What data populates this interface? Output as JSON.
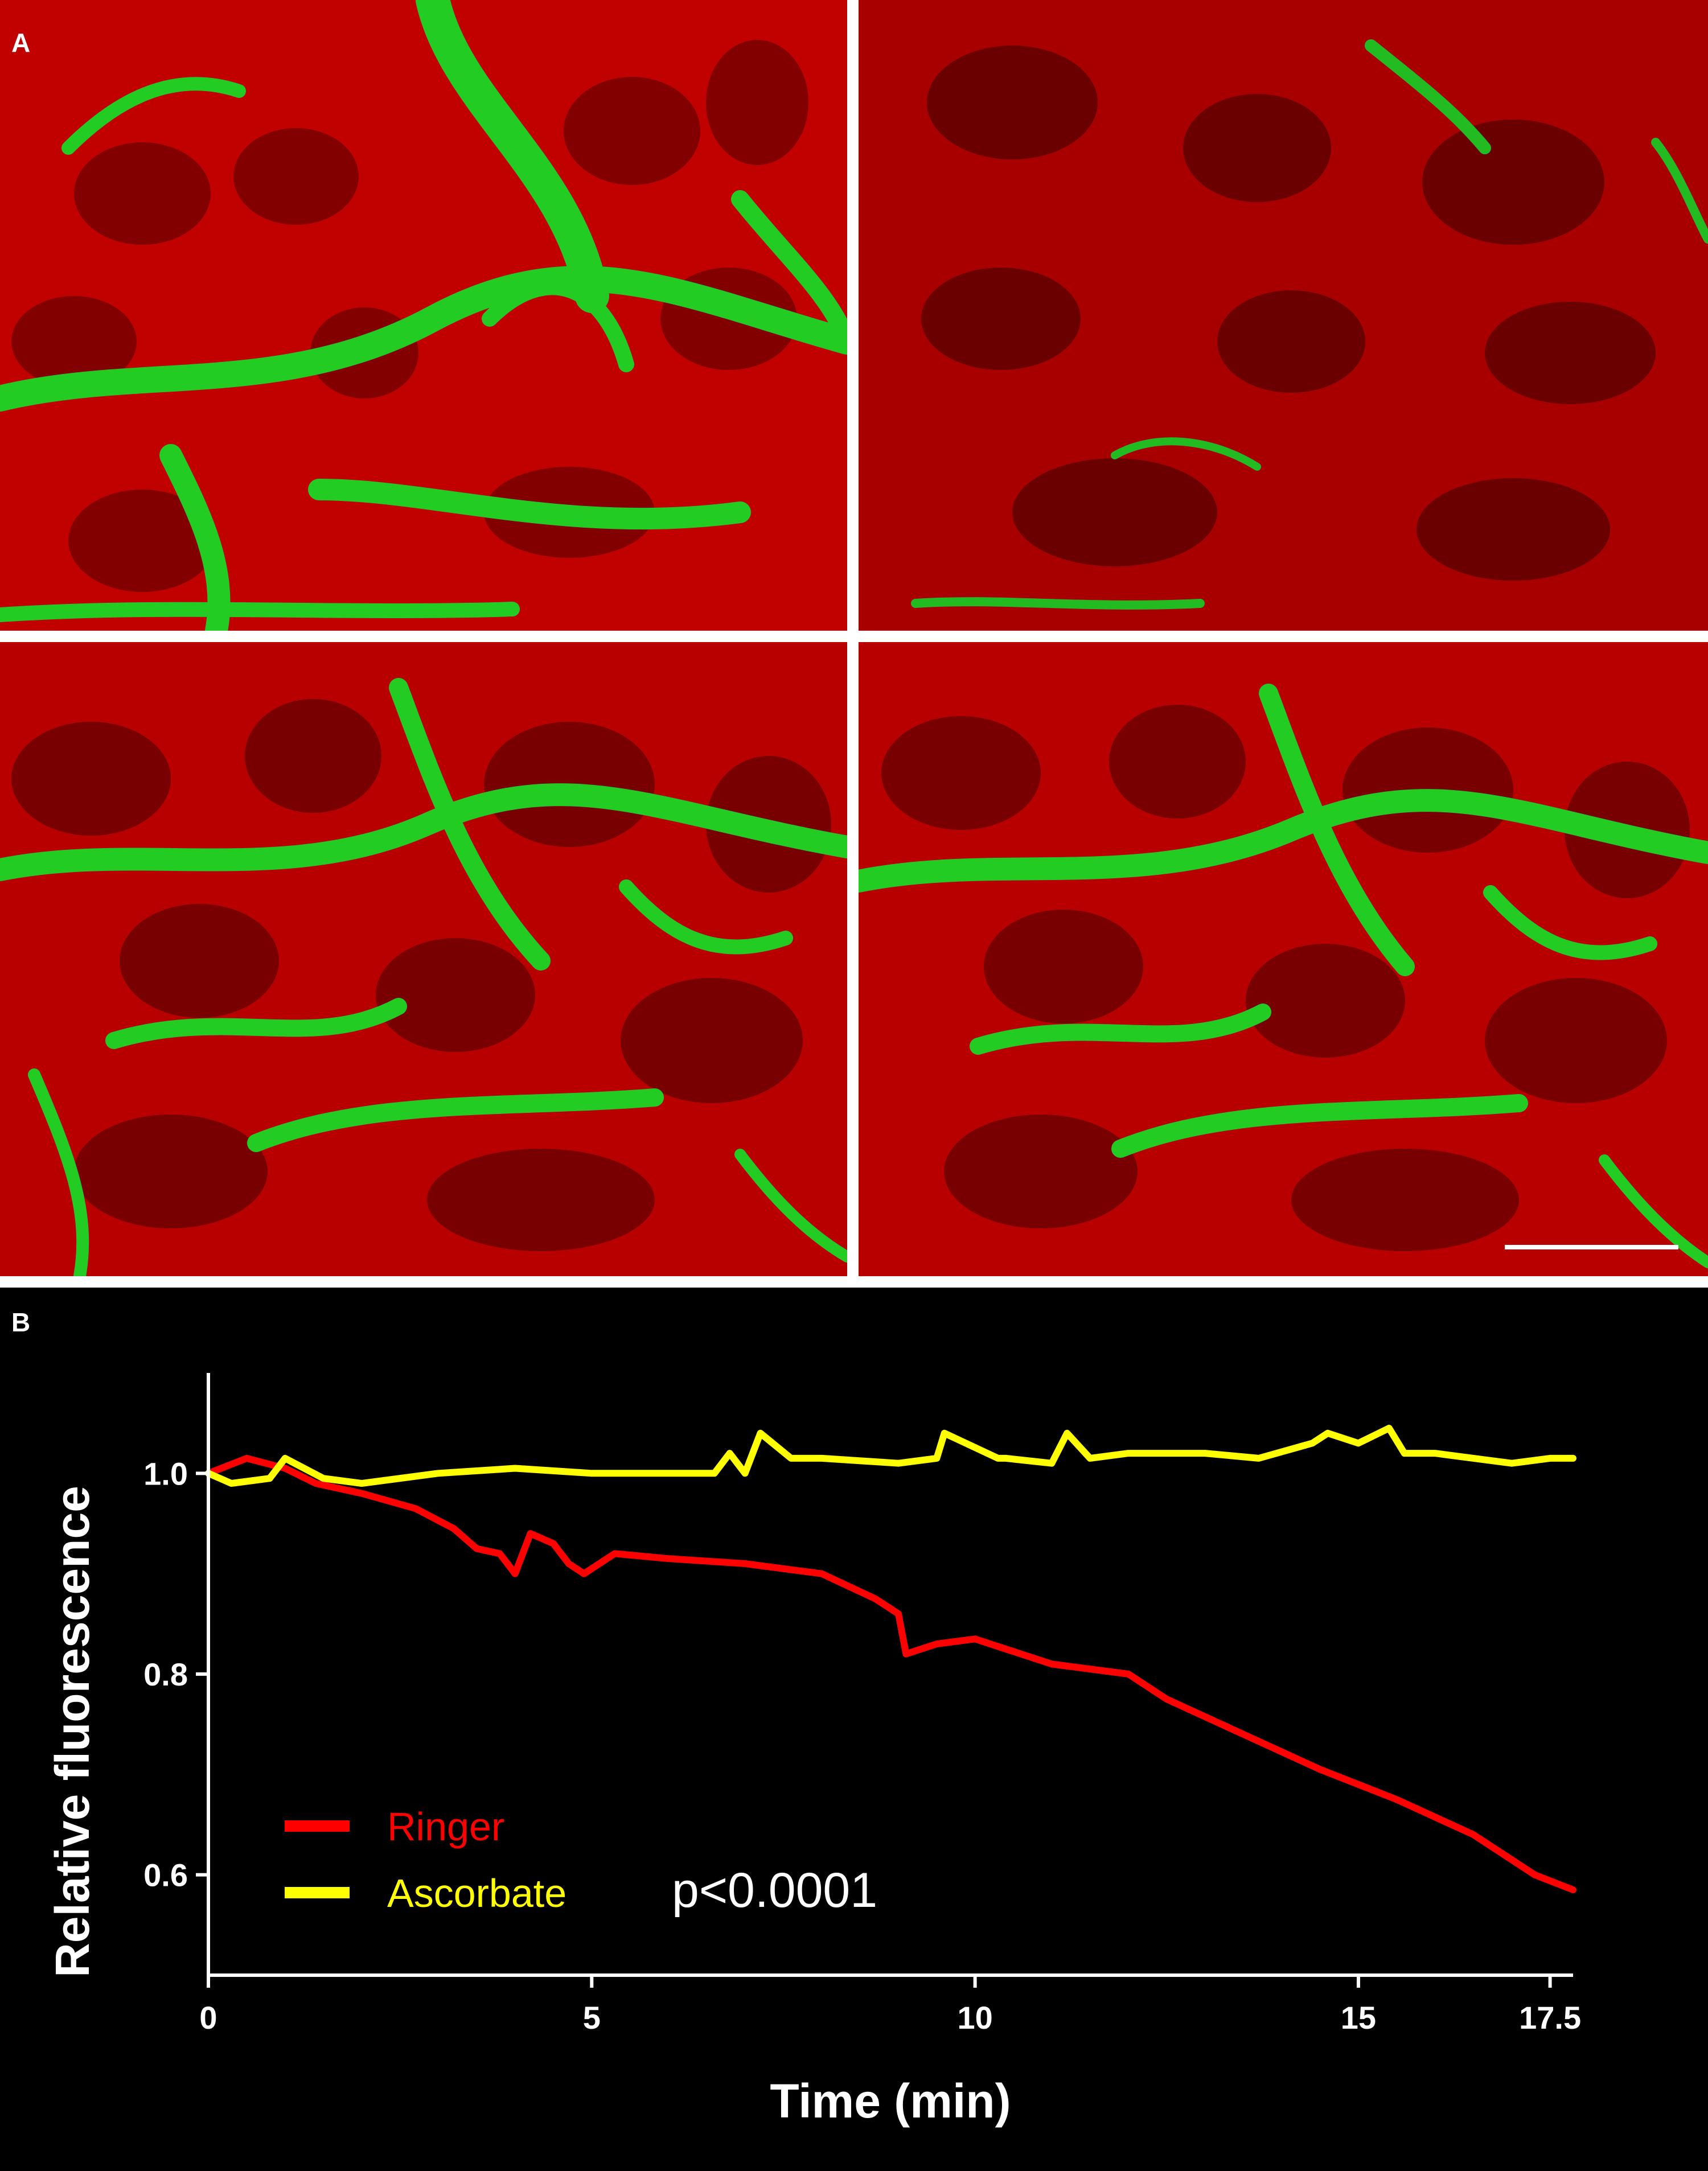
{
  "figure": {
    "panel_a_label": "A",
    "panel_b_label": "B",
    "panel_a_images": [
      "micrograph-top-left",
      "micrograph-top-right",
      "micrograph-bottom-left",
      "micrograph-bottom-right"
    ],
    "colors": {
      "background": "#000000",
      "tissue_red": "#cc0000",
      "vessel_green": "#1fd11f",
      "separator": "#ffffff",
      "axes": "#ffffff"
    }
  },
  "chart_data": {
    "type": "line",
    "title": "",
    "xlabel": "Time (min)",
    "ylabel": "Relative fluorescence",
    "xlim": [
      0,
      17.8
    ],
    "ylim": [
      0.5,
      1.1
    ],
    "xticks": [
      0,
      5,
      10,
      15,
      17.5
    ],
    "xtick_labels": [
      "0",
      "5",
      "10",
      "15",
      "17.5"
    ],
    "yticks": [
      0.6,
      0.8,
      1.0
    ],
    "ytick_labels": [
      "0.6",
      "0.8",
      "1.0"
    ],
    "legend_position": "bottom-left",
    "annotation": "p<0.0001",
    "series": [
      {
        "name": "Ringer",
        "color": "#ff0000",
        "x": [
          0,
          0.5,
          1.0,
          1.4,
          2.0,
          2.7,
          3.2,
          3.5,
          3.8,
          4.0,
          4.2,
          4.5,
          4.7,
          4.9,
          5.3,
          6.0,
          7.0,
          8.0,
          8.7,
          9.0,
          9.1,
          9.5,
          10.0,
          11.0,
          12.0,
          12.5,
          13.5,
          14.5,
          15.5,
          16.5,
          17.3,
          17.8
        ],
        "y": [
          1.0,
          1.015,
          1.005,
          0.99,
          0.98,
          0.965,
          0.945,
          0.925,
          0.92,
          0.9,
          0.94,
          0.93,
          0.91,
          0.9,
          0.92,
          0.915,
          0.91,
          0.9,
          0.875,
          0.86,
          0.82,
          0.83,
          0.835,
          0.81,
          0.8,
          0.775,
          0.74,
          0.705,
          0.675,
          0.64,
          0.6,
          0.585
        ]
      },
      {
        "name": "Ascorbate",
        "color": "#ffff00",
        "x": [
          0,
          0.3,
          0.8,
          1.0,
          1.5,
          2.0,
          3.0,
          4.0,
          5.0,
          6.0,
          6.6,
          6.8,
          7.0,
          7.2,
          7.6,
          8.0,
          9.0,
          9.5,
          9.6,
          10.3,
          10.4,
          11.0,
          11.2,
          11.5,
          12.0,
          13.0,
          13.7,
          14.4,
          14.6,
          15.0,
          15.4,
          15.6,
          16.0,
          16.5,
          17.0,
          17.5,
          17.8
        ],
        "y": [
          1.0,
          0.99,
          0.995,
          1.015,
          0.995,
          0.99,
          1.0,
          1.005,
          1.0,
          1.0,
          1.0,
          1.02,
          1.0,
          1.04,
          1.015,
          1.015,
          1.01,
          1.015,
          1.04,
          1.015,
          1.015,
          1.01,
          1.04,
          1.015,
          1.02,
          1.02,
          1.015,
          1.03,
          1.04,
          1.03,
          1.045,
          1.02,
          1.02,
          1.015,
          1.01,
          1.015,
          1.015
        ]
      }
    ]
  }
}
